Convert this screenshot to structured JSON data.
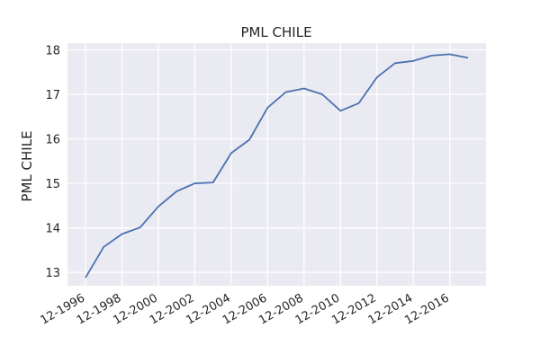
{
  "chart_data": {
    "type": "line",
    "title": "PML CHILE",
    "xlabel": "",
    "ylabel": "PML CHILE",
    "x": [
      "12-1996",
      "12-1997",
      "12-1998",
      "12-1999",
      "12-2000",
      "12-2001",
      "12-2002",
      "12-2003",
      "12-2004",
      "12-2005",
      "12-2006",
      "12-2007",
      "12-2008",
      "12-2009",
      "12-2010",
      "12-2011",
      "12-2012",
      "12-2013",
      "12-2014",
      "12-2015",
      "12-2016",
      "12-2017"
    ],
    "series": [
      {
        "values": [
          12.88,
          13.57,
          13.86,
          14.01,
          14.48,
          14.82,
          15.0,
          15.02,
          15.68,
          15.98,
          16.7,
          17.05,
          17.13,
          17.0,
          16.63,
          16.8,
          17.38,
          17.7,
          17.75,
          17.87,
          17.9,
          17.82
        ],
        "color": "#4c72b0"
      }
    ],
    "xticks": [
      "12-1996",
      "12-1998",
      "12-2000",
      "12-2002",
      "12-2004",
      "12-2006",
      "12-2008",
      "12-2010",
      "12-2012",
      "12-2014",
      "12-2016"
    ],
    "yticks": [
      13,
      14,
      15,
      16,
      17,
      18
    ],
    "ylim": [
      12.7,
      18.15
    ],
    "grid": true,
    "legend": "none",
    "background": "#eaeaf2",
    "grid_color": "#ffffff"
  }
}
